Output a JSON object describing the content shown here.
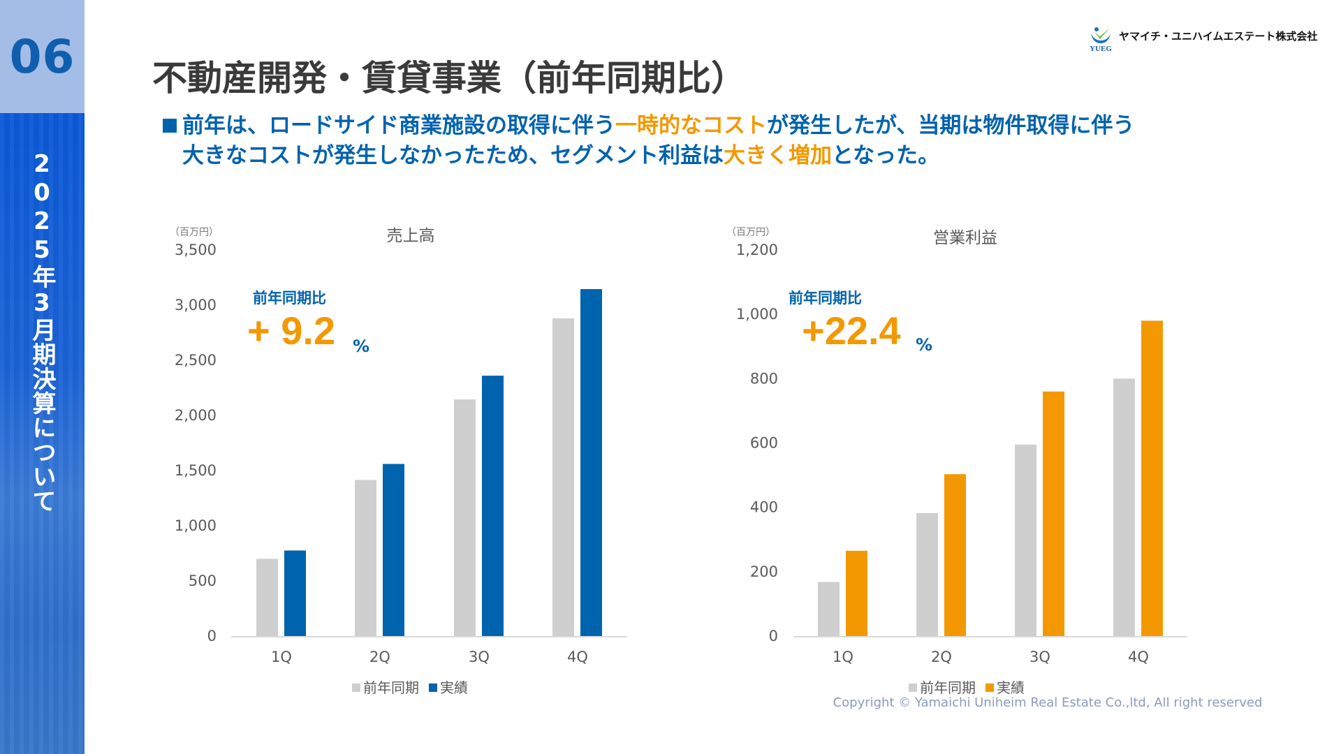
{
  "sidebar": {
    "section_number": "06",
    "section_title": "2025年3月期決算について"
  },
  "header": {
    "title": "不動産開発・賃貸事業（前年同期比）",
    "logo_text": "ヤマイチ・ユニハイムエステート株式会社",
    "logo_mark": "YUEG"
  },
  "summary": {
    "line1": [
      "前年は、ロードサイド商業施設の取得に伴う",
      "一時的なコスト",
      "が発生したが、当期は物件取得に伴う"
    ],
    "line2": [
      "大きなコストが発生しなかったため、セグメント利益は",
      "大きく増加",
      "となった。"
    ]
  },
  "colors": {
    "previous": "#d0cfd0",
    "sales_actual": "#0063ad",
    "profit_actual": "#f39800",
    "accent_text": "#0062ad",
    "highlight": "#f39800"
  },
  "chart_data": [
    {
      "type": "bar",
      "title": "売上高",
      "unit": "（百万円）",
      "categories": [
        "1Q",
        "2Q",
        "3Q",
        "4Q"
      ],
      "series": [
        {
          "name": "前年同期",
          "values": [
            700,
            1415,
            2145,
            2880
          ]
        },
        {
          "name": "実績",
          "values": [
            775,
            1560,
            2360,
            3145
          ]
        }
      ],
      "ylim": [
        0,
        3500
      ],
      "yticks": [
        "0",
        "500",
        "1,000",
        "1,500",
        "2,000",
        "2,500",
        "3,000",
        "3,500"
      ],
      "grid": false,
      "legend": "bottom",
      "yoy_label": "前年同期比",
      "yoy_value": "+ 9.2",
      "yoy_unit": "%"
    },
    {
      "type": "bar",
      "title": "営業利益",
      "unit": "（百万円）",
      "categories": [
        "1Q",
        "2Q",
        "3Q",
        "4Q"
      ],
      "series": [
        {
          "name": "前年同期",
          "values": [
            168,
            382,
            595,
            800
          ]
        },
        {
          "name": "実績",
          "values": [
            265,
            503,
            760,
            980
          ]
        }
      ],
      "ylim": [
        0,
        1200
      ],
      "yticks": [
        "0",
        "200",
        "400",
        "600",
        "800",
        "1,000",
        "1,200"
      ],
      "grid": false,
      "legend": "bottom",
      "yoy_label": "前年同期比",
      "yoy_value": "+22.4",
      "yoy_unit": "%"
    }
  ],
  "footer": {
    "copyright": "Copyright © Yamaichi Uniheim Real Estate Co.,ltd, All right reserved"
  }
}
